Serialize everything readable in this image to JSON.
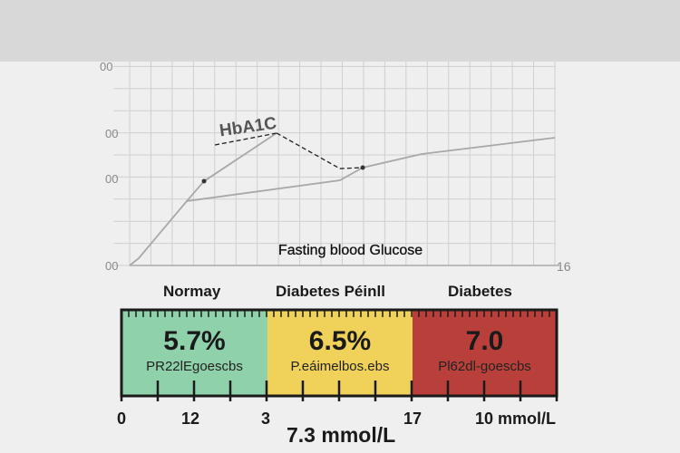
{
  "chart_data": [
    {
      "type": "line",
      "title": "",
      "annotation": "HbA1C",
      "xlabel": "Fasting blood Glucose",
      "x_tick_right": "16",
      "y_ticks": [
        "00",
        "00",
        "00",
        "00"
      ],
      "xlim": [
        0,
        16
      ],
      "ylim": [
        0,
        100
      ],
      "grid": true,
      "series": [
        {
          "name": "main",
          "style": "solid",
          "color": "#a8a8a8",
          "x": [
            0,
            0.34,
            2.15,
            7.91,
            8.77,
            10.99,
            16
          ],
          "y": [
            0,
            3.6,
            32.3,
            42.7,
            49.1,
            55.9,
            64.1
          ]
        },
        {
          "name": "upper",
          "style": "solid",
          "color": "#a8a8a8",
          "x": [
            2.15,
            2.8,
            5.53
          ],
          "y": [
            32.3,
            42.3,
            66.4
          ]
        },
        {
          "name": "hba1c-link",
          "style": "dashed",
          "color": "#222222",
          "x": [
            5.53,
            7.91,
            8.77
          ],
          "y": [
            66.4,
            48.6,
            49.1
          ]
        }
      ],
      "markers": [
        {
          "x": 2.8,
          "y": 42.3
        },
        {
          "x": 8.77,
          "y": 49.1
        }
      ]
    },
    {
      "type": "bar",
      "orientation": "horizontal-scale",
      "zones": [
        {
          "label": "Normay",
          "value": "5.7%",
          "sub": "PR22lEgoescbs",
          "color": "#8fd1ab"
        },
        {
          "label": "Diabetes Péinll",
          "value": "6.5%",
          "sub": "P.eáimelbos.ebs",
          "color": "#f0d25a"
        },
        {
          "label": "Diabetes",
          "value": "7.0",
          "sub": "Pl62dl-goescbs",
          "color": "#b9403a"
        }
      ],
      "scale_labels": [
        "0",
        "12",
        "3",
        "17",
        "10 mmol/L"
      ],
      "scale_caption": "7.3 mmol/L"
    }
  ]
}
